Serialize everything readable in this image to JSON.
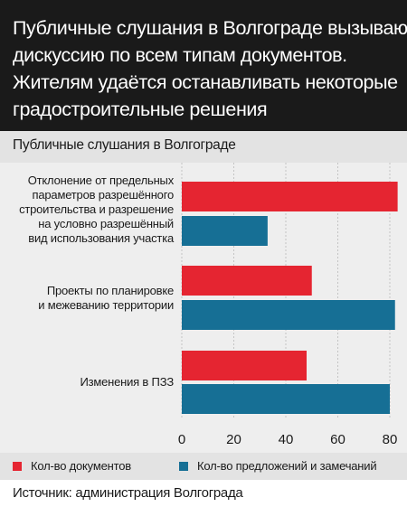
{
  "header": {
    "lines": [
      "Публичные слушания в Волгограде вызывают",
      "дискуссию по всем типам документов.",
      "Жителям удаётся останавливать некоторые",
      "градостроительные решения"
    ]
  },
  "colors": {
    "header_bg": "#1a1a1a",
    "documents": "#e52531",
    "proposals": "#166f95"
  },
  "chart_data": {
    "type": "bar",
    "orientation": "horizontal",
    "title": "Публичные слушания в Волгограде",
    "categories": [
      [
        "Отклонение от предельных",
        "параметров разрешённого",
        "строительства и разрешение",
        "на условно разрешённый",
        "вид использования участка"
      ],
      [
        "Проекты по планировке",
        "и межеванию территории"
      ],
      [
        "Изменения в ПЗЗ"
      ]
    ],
    "series": [
      {
        "name": "Кол-во документов",
        "color": "#e52531",
        "values": [
          83,
          50,
          48
        ]
      },
      {
        "name": "Кол-во предложений и замечаний",
        "color": "#166f95",
        "values": [
          33,
          82,
          80
        ]
      }
    ],
    "xlim": [
      0,
      80
    ],
    "xticks": [
      "0",
      "20",
      "40",
      "60",
      "80"
    ],
    "grid": true,
    "legend_position": "bottom"
  },
  "source": "Источник: администрация Волгограда"
}
